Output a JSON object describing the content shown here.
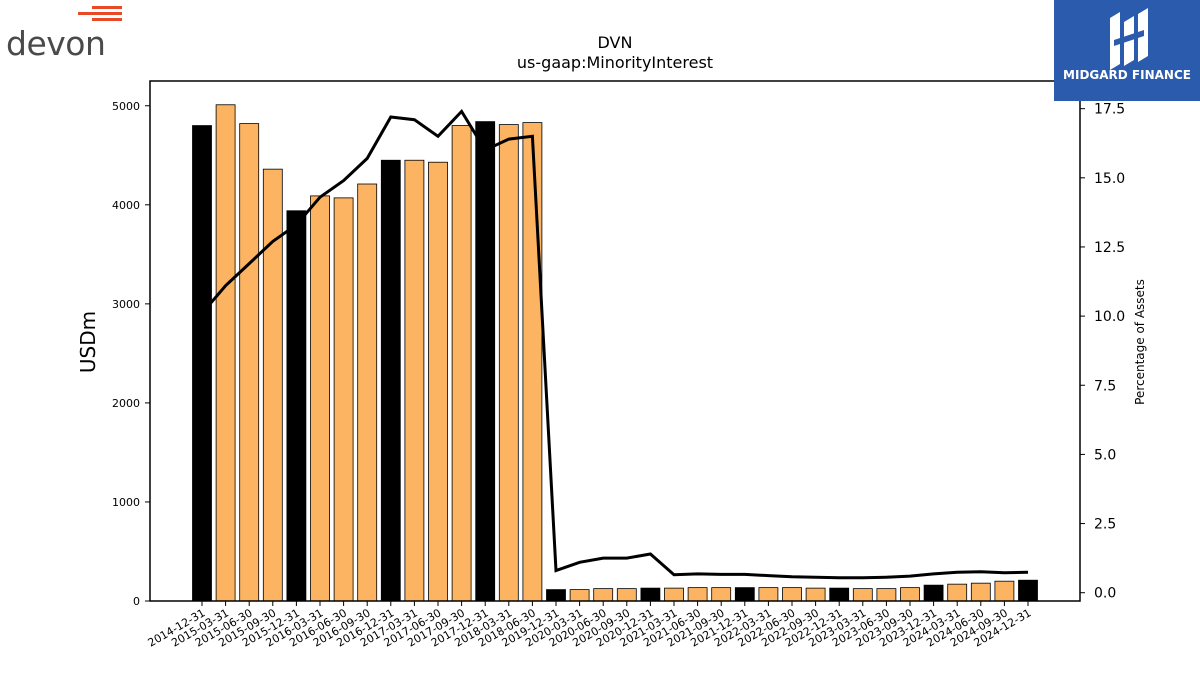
{
  "logos": {
    "left_text": "devon",
    "right_text": "MIDGARD FINANCE"
  },
  "colors": {
    "highlight_bar": "#000000",
    "normal_bar": "#fdb462",
    "line": "#000000",
    "brand_orange": "#e84a27",
    "brand_blue": "#2a5bac"
  },
  "chart_data": {
    "type": "bar",
    "title": "DVN",
    "subtitle": "us-gaap:MinorityInterest",
    "ylabel": "USDm",
    "y2label": "Percentage of Assets",
    "ylim": [
      0,
      5250
    ],
    "y2lim": [
      -0.3,
      18.5
    ],
    "yticks": [
      0,
      1000,
      2000,
      3000,
      4000,
      5000
    ],
    "y2ticks": [
      "0.0",
      "2.5",
      "5.0",
      "7.5",
      "10.0",
      "12.5",
      "15.0",
      "17.5"
    ],
    "grid": false,
    "categories": [
      "2014-12-31",
      "2015-03-31",
      "2015-06-30",
      "2015-09-30",
      "2015-12-31",
      "2016-03-31",
      "2016-06-30",
      "2016-09-30",
      "2016-12-31",
      "2017-03-31",
      "2017-06-30",
      "2017-09-30",
      "2017-12-31",
      "2018-03-31",
      "2018-06-30",
      "2019-12-31",
      "2020-03-31",
      "2020-06-30",
      "2020-09-30",
      "2020-12-31",
      "2021-03-31",
      "2021-06-30",
      "2021-09-30",
      "2021-12-31",
      "2022-03-31",
      "2022-06-30",
      "2022-09-30",
      "2022-12-31",
      "2023-03-31",
      "2023-06-30",
      "2023-09-30",
      "2023-12-31",
      "2024-03-31",
      "2024-06-30",
      "2024-09-30",
      "2024-12-31"
    ],
    "highlight": [
      true,
      false,
      false,
      false,
      true,
      false,
      false,
      false,
      true,
      false,
      false,
      false,
      true,
      false,
      false,
      true,
      false,
      false,
      false,
      true,
      false,
      false,
      false,
      true,
      false,
      false,
      false,
      true,
      false,
      false,
      false,
      true,
      false,
      false,
      false,
      true
    ],
    "series": [
      {
        "type": "bar",
        "values": [
          4800,
          5010,
          4820,
          4360,
          3940,
          4090,
          4070,
          4210,
          4450,
          4450,
          4430,
          4800,
          4840,
          4810,
          4830,
          115,
          115,
          125,
          125,
          130,
          130,
          135,
          135,
          135,
          135,
          135,
          130,
          130,
          125,
          125,
          135,
          160,
          170,
          180,
          200,
          210
        ]
      },
      {
        "type": "line",
        "axis": "right",
        "values": [
          10.1,
          11.1,
          11.9,
          12.7,
          13.3,
          14.3,
          14.9,
          15.7,
          17.2,
          17.1,
          16.5,
          17.4,
          16.0,
          16.4,
          16.5,
          0.8,
          1.1,
          1.25,
          1.25,
          1.4,
          0.65,
          0.68,
          0.66,
          0.66,
          0.62,
          0.58,
          0.56,
          0.54,
          0.54,
          0.56,
          0.6,
          0.68,
          0.74,
          0.76,
          0.72,
          0.74
        ]
      }
    ]
  }
}
